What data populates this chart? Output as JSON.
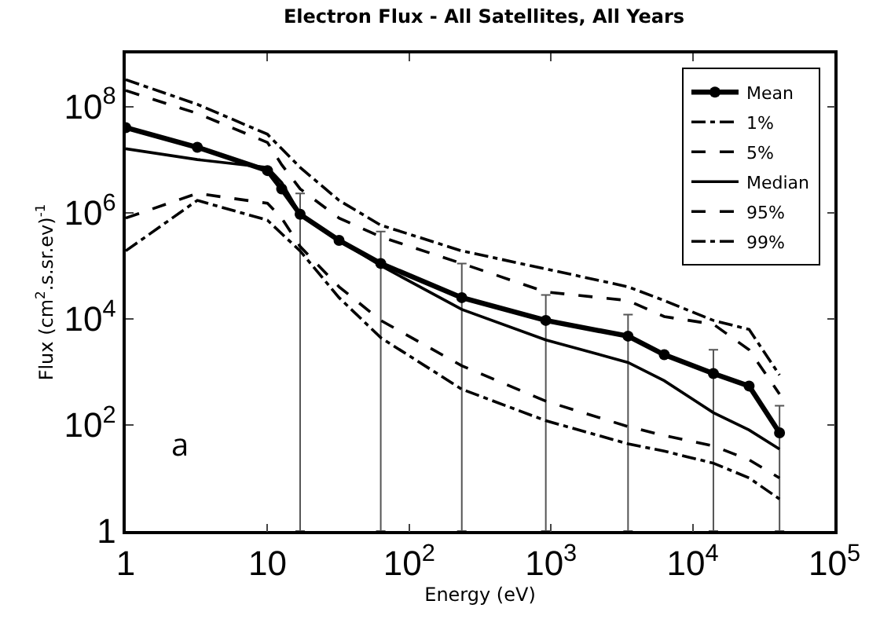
{
  "chart_data": {
    "type": "line",
    "title": "Electron Flux - All Satellites, All Years",
    "xlabel": "Energy (eV)",
    "ylabel": "Flux (cm$^{2}$.s.sr.ev)$^{-1}$",
    "x": [
      1,
      3.2,
      10,
      12.6,
      17,
      32,
      63,
      235,
      920,
      3500,
      6300,
      14000,
      25000,
      41000
    ],
    "series": [
      {
        "name": "Mean",
        "color": "#000000",
        "marker": "circle",
        "line_style": "solid",
        "values": [
          40000000.0,
          17000000.0,
          6200000.0,
          2800000.0,
          930000.0,
          300000.0,
          110000.0,
          25000.0,
          9300,
          4700,
          2100,
          930,
          540,
          71
        ],
        "errors": [
          null,
          null,
          null,
          null,
          [
            1,
            2300000.0
          ],
          null,
          [
            1,
            440000.0
          ],
          [
            1,
            110000.0
          ],
          [
            1,
            28000.0
          ],
          [
            1,
            12000.0
          ],
          null,
          [
            1,
            2600
          ],
          null,
          [
            1,
            230
          ]
        ]
      },
      {
        "name": "1%",
        "color": "#000000",
        "marker": "none",
        "line_style": "dashdot",
        "values": [
          190000.0,
          1700000.0,
          720000.0,
          400000.0,
          190000.0,
          25000.0,
          4400,
          470,
          120,
          44,
          32,
          19,
          10,
          4
        ]
      },
      {
        "name": "5%",
        "color": "#000000",
        "marker": "none",
        "line_style": "dashed",
        "values": [
          790000.0,
          2300000.0,
          1500000.0,
          790000.0,
          230000.0,
          40000.0,
          9300,
          1300,
          280,
          93,
          63,
          40,
          22,
          10
        ]
      },
      {
        "name": "Median",
        "color": "#000000",
        "marker": "none",
        "line_style": "solid",
        "values": [
          16000000.0,
          10000000.0,
          7100000.0,
          3700000.0,
          930000.0,
          300000.0,
          100000.0,
          15000.0,
          4000,
          1500,
          680,
          170,
          80,
          35
        ]
      },
      {
        "name": "95%",
        "color": "#000000",
        "marker": "none",
        "line_style": "dashed",
        "values": [
          200000000.0,
          74000000.0,
          21000000.0,
          8000000.0,
          2800000.0,
          790000.0,
          350000.0,
          110000.0,
          32000.0,
          22000.0,
          11000.0,
          7900,
          2600,
          380
        ]
      },
      {
        "name": "99%",
        "color": "#000000",
        "marker": "none",
        "line_style": "dashdot",
        "values": [
          320000000.0,
          110000000.0,
          30000000.0,
          16000000.0,
          7100000.0,
          1700000.0,
          580000.0,
          190000.0,
          87000.0,
          40000.0,
          22000.0,
          9300,
          6300,
          870
        ]
      }
    ],
    "log": "xy",
    "xlim": [
      1,
      100000
    ],
    "ylim": [
      1,
      1000000000
    ],
    "xticks": [
      1,
      10,
      {
        "value": 100,
        "label": "10$^{2}$"
      },
      {
        "value": 1000,
        "label": "10$^{3}$"
      },
      {
        "value": 10000,
        "label": "10$^{4}$"
      },
      {
        "value": 100000,
        "label": "10$^{5}$"
      }
    ],
    "yticks": [
      1,
      {
        "value": 100,
        "label": "10$^{2}$"
      },
      {
        "value": 10000,
        "label": "10$^{4}$"
      },
      {
        "value": 1000000,
        "label": "10$^{6}$"
      },
      {
        "value": 100000000,
        "label": "10$^{8}$"
      }
    ],
    "grid": false,
    "legend": "top right",
    "annotations": [
      "a"
    ]
  }
}
